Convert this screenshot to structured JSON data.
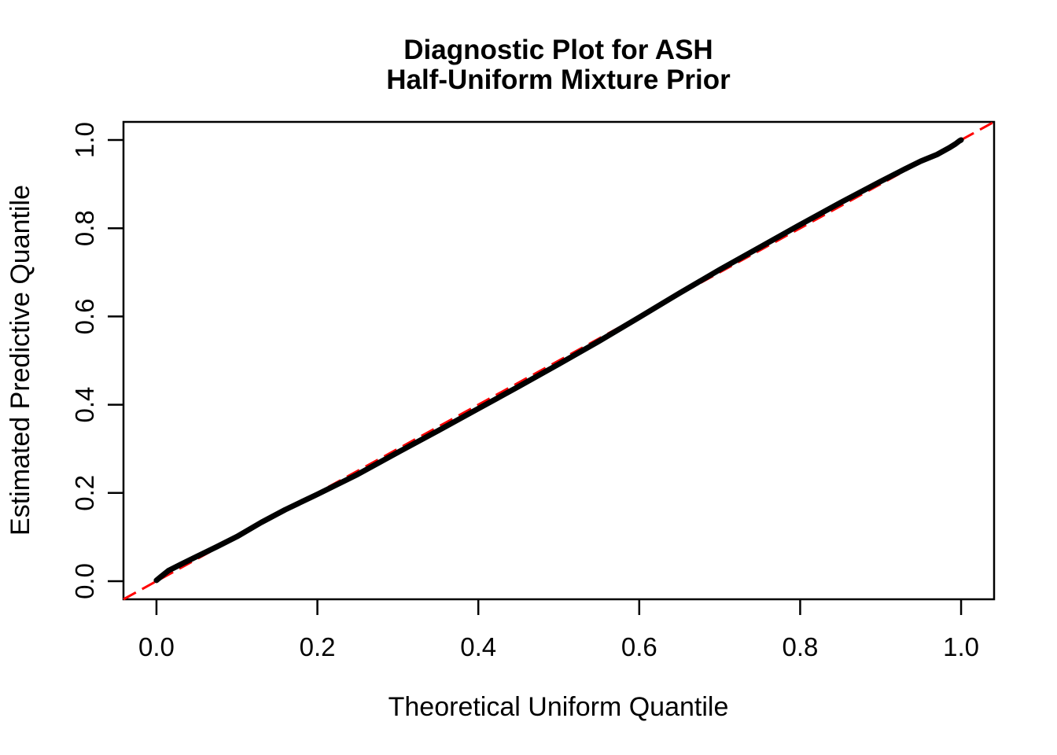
{
  "chart_data": {
    "type": "scatter",
    "title": "Diagnostic Plot for ASH Half-Uniform Mixture Prior",
    "title_lines": [
      "Diagnostic Plot for ASH",
      "Half-Uniform Mixture Prior"
    ],
    "xlabel": "Theoretical Uniform Quantile",
    "ylabel": "Estimated Predictive Quantile",
    "xlim": [
      -0.041,
      1.041
    ],
    "ylim": [
      -0.041,
      1.041
    ],
    "grid": false,
    "legend_position": "none",
    "x_ticks": {
      "values": [
        0.0,
        0.2,
        0.4,
        0.6,
        0.8,
        1.0
      ],
      "labels": [
        "0.0",
        "0.2",
        "0.4",
        "0.6",
        "0.8",
        "1.0"
      ]
    },
    "y_ticks": {
      "values": [
        0.0,
        0.2,
        0.4,
        0.6,
        0.8,
        1.0
      ],
      "labels": [
        "0.0",
        "0.2",
        "0.4",
        "0.6",
        "0.8",
        "1.0"
      ]
    },
    "series": [
      {
        "name": "estimated-predictive-quantiles",
        "color": "#000000",
        "marker": "point",
        "x": [
          0.0,
          0.006,
          0.015,
          0.03,
          0.05,
          0.075,
          0.1,
          0.13,
          0.16,
          0.2,
          0.25,
          0.3,
          0.35,
          0.4,
          0.45,
          0.5,
          0.55,
          0.6,
          0.65,
          0.7,
          0.75,
          0.8,
          0.85,
          0.9,
          0.93,
          0.95,
          0.97,
          0.985,
          0.993,
          0.998,
          1.0
        ],
        "y": [
          0.002,
          0.011,
          0.024,
          0.038,
          0.056,
          0.078,
          0.101,
          0.133,
          0.162,
          0.197,
          0.242,
          0.292,
          0.341,
          0.391,
          0.441,
          0.492,
          0.544,
          0.598,
          0.653,
          0.706,
          0.757,
          0.808,
          0.858,
          0.906,
          0.934,
          0.952,
          0.967,
          0.982,
          0.991,
          0.998,
          1.0
        ]
      }
    ],
    "reference_line": {
      "name": "identity-line",
      "intercept": 0,
      "slope": 1,
      "color": "#FF0000",
      "style": "dashed"
    }
  }
}
